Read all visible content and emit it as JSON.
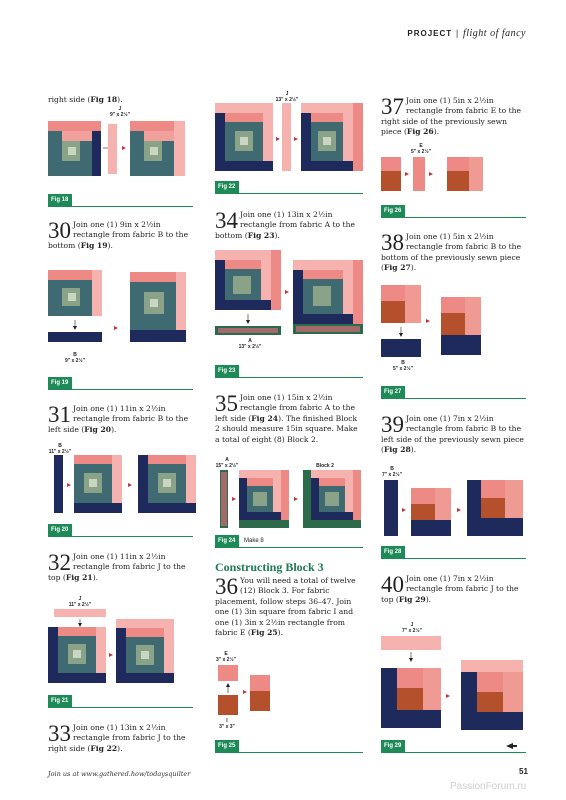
{
  "header": {
    "project": "PROJECT",
    "sep": "|",
    "title": "flight of fancy"
  },
  "colors": {
    "fig_green": "#1e8a58",
    "heading_green": "#1e7a55",
    "navy": "#1f2a5c",
    "pink": "#ee8a86",
    "light_pink": "#f5b2ae",
    "rust": "#b4502c",
    "teal": "#3f6a72",
    "sage": "#8aa288"
  },
  "col1": {
    "intro": {
      "pre": "right side (",
      "fig": "Fig 18",
      "post": ")."
    },
    "fig18": {
      "label_name": "J",
      "label_size": "9\" x 2½\"",
      "caption": "Fig 18"
    },
    "s30": {
      "num": "30",
      "text": "Join one (1) 9in x 2½in rectangle from fabric B to the bottom (",
      "fig": "Fig 19",
      "post": ")."
    },
    "fig19": {
      "label_name": "B",
      "label_size": "9\" x 2½\"",
      "caption": "Fig 19"
    },
    "s31": {
      "num": "31",
      "text": "Join one (1) 11in x 2½in rectangle from fabric B to the left side (",
      "fig": "Fig 20",
      "post": ")."
    },
    "fig20": {
      "label_name": "B",
      "label_size": "11\" x 2½\"",
      "caption": "Fig 20"
    },
    "s32": {
      "num": "32",
      "text": "Join one (1) 11in x 2½in rectangle from fabric J to the top (",
      "fig": "Fig 21",
      "post": ")."
    },
    "fig21": {
      "label_name": "J",
      "label_size": "11\" x 2½\"",
      "caption": "Fig 21"
    },
    "s33": {
      "num": "33",
      "text": "Join one (1) 13in x 2½in rectangle from fabric J to the right side (",
      "fig": "Fig 22",
      "post": ")."
    }
  },
  "col2": {
    "fig22": {
      "label_name": "J",
      "label_size": "13\" x 2½\"",
      "caption": "Fig 22"
    },
    "s34": {
      "num": "34",
      "text": "Join one (1) 13in x 2½in rectangle from fabric A to the bottom (",
      "fig": "Fig 23",
      "post": ")."
    },
    "fig23": {
      "label_name": "A",
      "label_size": "13\" x 2½\"",
      "caption": "Fig 23"
    },
    "s35": {
      "num": "35",
      "text": "Join one (1) 15in x 2½in rectangle from fabric A to the left side (",
      "fig": "Fig 24",
      "post": "). The finished Block 2 should measure 15in square. Make a total of eight (8) Block 2."
    },
    "fig24": {
      "label_name": "A",
      "label_size": "15\" x 2½\"",
      "block_label": "Block 2",
      "caption": "Fig 24",
      "make": "Make 8"
    },
    "section": "Constructing Block 3",
    "s36": {
      "num": "36",
      "text": "You will need a total of twelve (12) Block 3. For fabric placement, follow steps 36–47. Join one (1) 3in square from fabric I and one (1) 3in x 2½in rectangle from fabric E (",
      "fig": "Fig 25",
      "post": ")."
    },
    "fig25": {
      "label_e_name": "E",
      "label_e_size": "3\" x 2½\"",
      "label_i_name": "I",
      "label_i_size": "3\" x 3\"",
      "caption": "Fig 25"
    }
  },
  "col3": {
    "s37": {
      "num": "37",
      "text": "Join one (1) 5in x 2½in rectangle from fabric E to the right side of the previously sewn piece (",
      "fig": "Fig 26",
      "post": ")."
    },
    "fig26": {
      "label_name": "E",
      "label_size": "5\" x 2½\"",
      "caption": "Fig 26"
    },
    "s38": {
      "num": "38",
      "text": "Join one (1) 5in x 2½in rectangle from fabric B to the bottom of the previously sewn piece (",
      "fig": "Fig 27",
      "post": ")."
    },
    "fig27": {
      "label_name": "B",
      "label_size": "5\" x 2½\"",
      "caption": "Fig 27"
    },
    "s39": {
      "num": "39",
      "text": "Join one (1) 7in x 2½in rectangle from fabric B to the left side of the previously sewn piece (",
      "fig": "Fig 28",
      "post": ")."
    },
    "fig28": {
      "label_name": "B",
      "label_size": "7\" x 2½\"",
      "caption": "Fig 28"
    },
    "s40": {
      "num": "40",
      "text": "Join one (1) 7in x 2½in rectangle from fabric J to the top (",
      "fig": "Fig 29",
      "post": ")."
    },
    "fig29": {
      "label_name": "J",
      "label_size": "7\" x 2½\"",
      "caption": "Fig 29"
    }
  },
  "footer": {
    "text": "Join us at www.gathered.how/todaysquilter",
    "page": "51",
    "watermark": "PassionForum.ru"
  }
}
